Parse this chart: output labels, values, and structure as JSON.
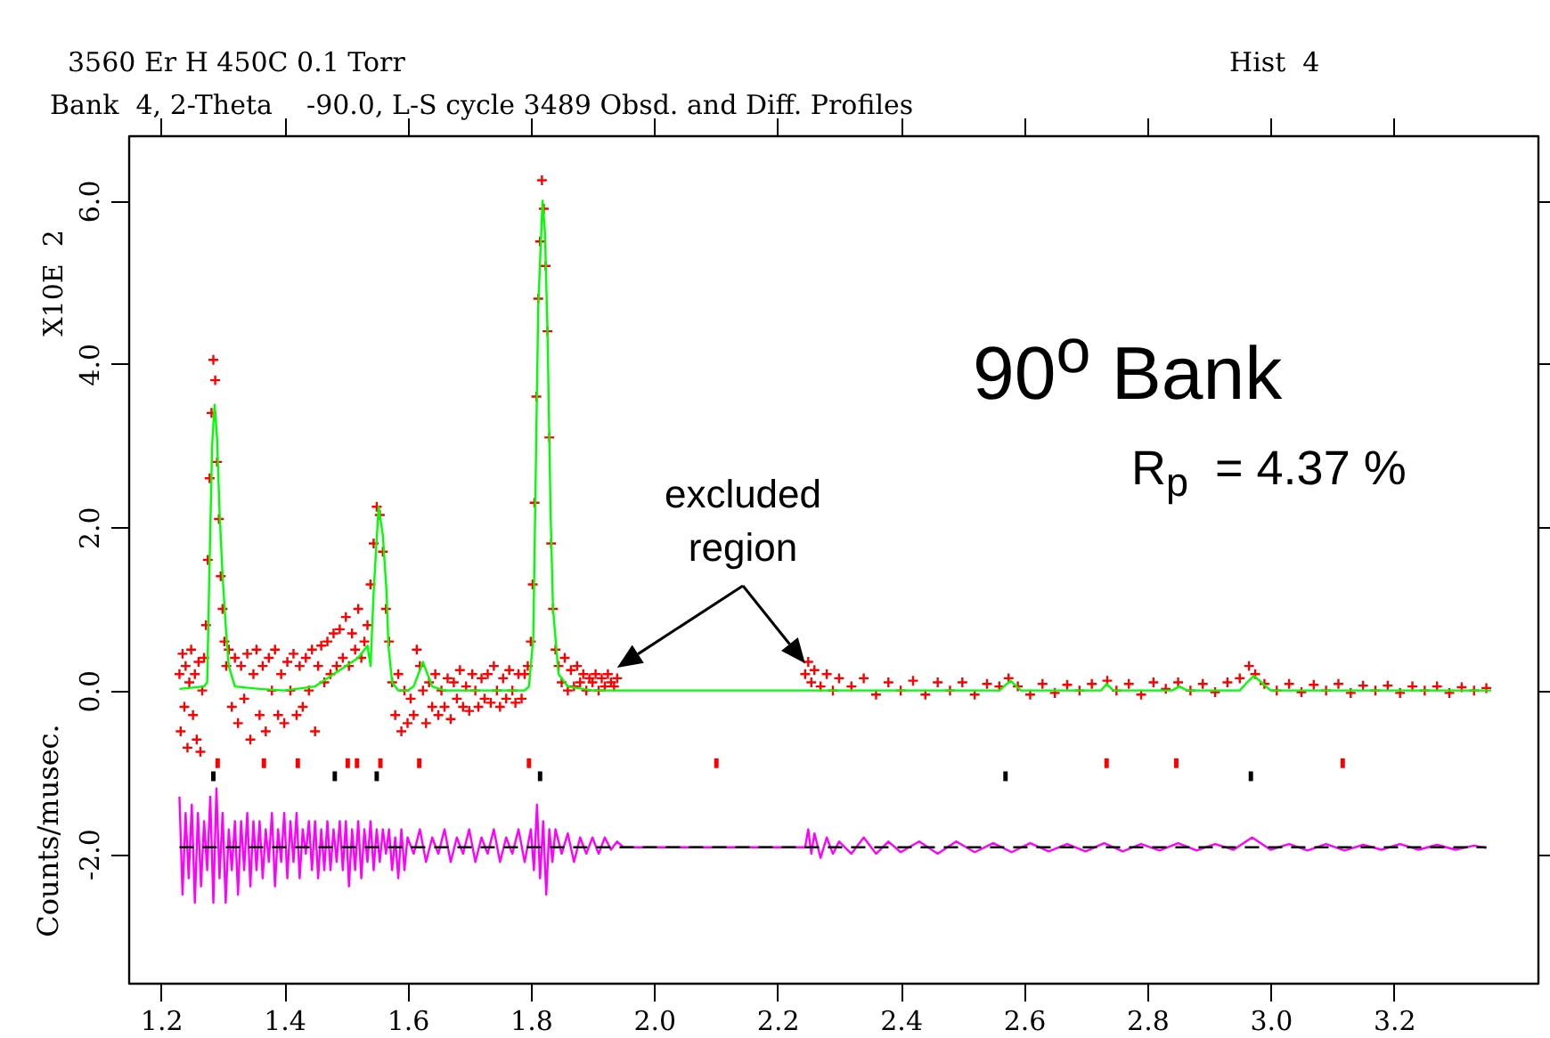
{
  "chart_data": {
    "type": "scatter",
    "title": "3560 Er H 450C 0.1 Torr",
    "subtitle": "Bank  4, 2-Theta    -90.0, L-S cycle 3489 Obsd. and Diff. Profiles",
    "ylabel": "Counts/musec.",
    "annotations": [
      "Hist  4",
      "X10E  2",
      "90$^{o}$ Bank",
      "R$_{p}$  = 4.37 %",
      "excluded region"
    ],
    "xlim": [
      1.147,
      3.433
    ],
    "xticks": [
      {
        "value": 1.2,
        "label": "1.2"
      },
      {
        "value": 1.4,
        "label": "1.4"
      },
      {
        "value": 1.6,
        "label": "1.6"
      },
      {
        "value": 1.8,
        "label": "1.8"
      },
      {
        "value": 2.0,
        "label": "2.0"
      },
      {
        "value": 2.2,
        "label": "2.2"
      },
      {
        "value": 2.4,
        "label": "2.4"
      },
      {
        "value": 2.6,
        "label": "2.6"
      },
      {
        "value": 2.8,
        "label": "2.8"
      },
      {
        "value": 3.0,
        "label": "3.0"
      },
      {
        "value": 3.2,
        "label": "3.2"
      }
    ],
    "ylim": [
      -3.58,
      6.8
    ],
    "yticks": [
      {
        "value": -2,
        "label": "-2.0"
      },
      {
        "value": 0,
        "label": "0.0"
      },
      {
        "value": 2,
        "label": "2.0"
      },
      {
        "value": 4,
        "label": "4.0"
      },
      {
        "value": 6,
        "label": "6.0"
      }
    ],
    "grid": false,
    "series": [
      {
        "marker": "cross",
        "color": "#ff0000",
        "x": [
          1.23,
          1.232,
          1.235,
          1.238,
          1.24,
          1.243,
          1.246,
          1.249,
          1.252,
          1.255,
          1.258,
          1.261,
          1.264,
          1.267,
          1.27,
          1.273,
          1.276,
          1.279,
          1.282,
          1.285,
          1.288,
          1.291,
          1.294,
          1.297,
          1.3,
          1.303,
          1.306,
          1.31,
          1.315,
          1.32,
          1.325,
          1.33,
          1.335,
          1.34,
          1.345,
          1.35,
          1.355,
          1.36,
          1.365,
          1.37,
          1.375,
          1.38,
          1.385,
          1.39,
          1.395,
          1.4,
          1.405,
          1.41,
          1.415,
          1.42,
          1.425,
          1.43,
          1.435,
          1.44,
          1.445,
          1.45,
          1.455,
          1.46,
          1.465,
          1.47,
          1.475,
          1.48,
          1.485,
          1.49,
          1.495,
          1.5,
          1.505,
          1.51,
          1.515,
          1.52,
          1.525,
          1.53,
          1.535,
          1.54,
          1.545,
          1.55,
          1.555,
          1.56,
          1.565,
          1.57,
          1.575,
          1.58,
          1.585,
          1.59,
          1.595,
          1.6,
          1.605,
          1.61,
          1.615,
          1.62,
          1.625,
          1.63,
          1.635,
          1.64,
          1.645,
          1.65,
          1.655,
          1.66,
          1.665,
          1.67,
          1.675,
          1.68,
          1.685,
          1.69,
          1.695,
          1.7,
          1.705,
          1.71,
          1.715,
          1.72,
          1.725,
          1.73,
          1.735,
          1.74,
          1.745,
          1.75,
          1.755,
          1.76,
          1.765,
          1.77,
          1.775,
          1.78,
          1.785,
          1.79,
          1.795,
          1.8,
          1.803,
          1.806,
          1.809,
          1.812,
          1.815,
          1.818,
          1.821,
          1.824,
          1.827,
          1.83,
          1.833,
          1.836,
          1.84,
          1.845,
          1.85,
          1.855,
          1.86,
          1.865,
          1.87,
          1.875,
          1.88,
          1.885,
          1.89,
          1.895,
          1.9,
          1.905,
          1.91,
          1.915,
          1.92,
          1.925,
          1.93,
          1.935,
          1.94,
          2.245,
          2.25,
          2.255,
          2.26,
          2.27,
          2.28,
          2.29,
          2.3,
          2.32,
          2.34,
          2.36,
          2.38,
          2.4,
          2.42,
          2.44,
          2.46,
          2.48,
          2.5,
          2.52,
          2.54,
          2.56,
          2.575,
          2.59,
          2.61,
          2.63,
          2.65,
          2.67,
          2.69,
          2.71,
          2.735,
          2.75,
          2.77,
          2.79,
          2.81,
          2.83,
          2.85,
          2.87,
          2.89,
          2.91,
          2.93,
          2.95,
          2.965,
          2.975,
          2.99,
          3.01,
          3.03,
          3.05,
          3.07,
          3.09,
          3.11,
          3.13,
          3.15,
          3.17,
          3.19,
          3.21,
          3.23,
          3.25,
          3.27,
          3.29,
          3.31,
          3.33,
          3.35
        ],
        "values": [
          0.2,
          -0.5,
          0.45,
          -0.2,
          0.3,
          -0.7,
          0.1,
          0.5,
          -0.3,
          0.2,
          -0.6,
          0.35,
          -0.75,
          0.0,
          0.4,
          0.8,
          1.6,
          2.6,
          3.4,
          4.05,
          3.8,
          2.8,
          2.1,
          1.4,
          1.0,
          0.6,
          0.3,
          0.5,
          -0.2,
          0.4,
          -0.4,
          0.3,
          -0.1,
          0.45,
          -0.6,
          0.2,
          0.5,
          -0.3,
          0.3,
          -0.5,
          0.4,
          0.0,
          0.5,
          -0.3,
          0.2,
          -0.4,
          0.35,
          0.0,
          0.45,
          -0.3,
          0.3,
          -0.2,
          0.4,
          0.0,
          0.5,
          -0.5,
          0.3,
          0.55,
          0.1,
          0.6,
          0.2,
          0.7,
          0.3,
          0.75,
          0.4,
          0.9,
          0.3,
          0.7,
          0.5,
          1.0,
          0.4,
          0.6,
          0.8,
          1.3,
          1.8,
          2.25,
          2.15,
          1.7,
          1.0,
          0.6,
          0.1,
          -0.3,
          0.2,
          -0.5,
          0.0,
          -0.4,
          -0.1,
          -0.3,
          0.5,
          0.3,
          0.0,
          -0.4,
          0.1,
          -0.2,
          0.2,
          -0.3,
          0.0,
          -0.2,
          0.15,
          -0.35,
          0.1,
          -0.1,
          0.25,
          -0.2,
          0.05,
          -0.25,
          0.2,
          0.0,
          -0.2,
          0.15,
          -0.1,
          0.2,
          -0.15,
          0.3,
          0.0,
          -0.2,
          0.15,
          -0.1,
          0.25,
          0.0,
          -0.15,
          0.2,
          -0.1,
          0.2,
          0.3,
          0.6,
          1.3,
          2.3,
          3.6,
          4.8,
          5.5,
          6.25,
          5.9,
          5.2,
          4.4,
          3.1,
          1.8,
          1.0,
          0.5,
          0.3,
          0.1,
          0.4,
          0.0,
          0.25,
          0.05,
          0.3,
          0.1,
          0.2,
          0.0,
          0.15,
          0.1,
          0.2,
          0.0,
          0.15,
          0.05,
          0.2,
          0.1,
          0.05,
          0.15,
          0.2,
          0.35,
          0.1,
          0.25,
          0.05,
          0.2,
          0.0,
          0.15,
          0.05,
          0.15,
          -0.05,
          0.1,
          0.0,
          0.12,
          -0.05,
          0.1,
          0.0,
          0.1,
          -0.05,
          0.08,
          0.05,
          0.15,
          0.05,
          -0.05,
          0.08,
          -0.03,
          0.07,
          0.0,
          0.08,
          0.12,
          0.0,
          0.08,
          -0.05,
          0.1,
          0.02,
          0.1,
          0.0,
          0.08,
          -0.02,
          0.1,
          0.15,
          0.3,
          0.2,
          0.08,
          0.0,
          0.08,
          -0.02,
          0.07,
          0.0,
          0.08,
          -0.03,
          0.06,
          0.0,
          0.06,
          -0.03,
          0.05,
          0.0,
          0.05,
          -0.03,
          0.04,
          0.0,
          0.03
        ]
      },
      {
        "type": "line",
        "color": "#00ff00",
        "x": [
          1.23,
          1.27,
          1.275,
          1.279,
          1.283,
          1.287,
          1.291,
          1.295,
          1.3,
          1.305,
          1.31,
          1.32,
          1.36,
          1.4,
          1.45,
          1.48,
          1.5,
          1.52,
          1.535,
          1.54,
          1.545,
          1.553,
          1.56,
          1.566,
          1.569,
          1.575,
          1.585,
          1.6,
          1.61,
          1.625,
          1.64,
          1.66,
          1.7,
          1.75,
          1.79,
          1.797,
          1.804,
          1.812,
          1.819,
          1.823,
          1.827,
          1.832,
          1.836,
          1.845,
          1.86,
          1.9,
          1.95,
          2.1,
          2.245,
          2.4,
          2.56,
          2.578,
          2.595,
          2.7,
          2.725,
          2.734,
          2.745,
          2.84,
          2.852,
          2.865,
          2.95,
          2.962,
          2.973,
          2.985,
          3.0,
          3.2,
          3.358
        ],
        "values": [
          0.02,
          0.05,
          0.1,
          1.6,
          3.0,
          3.5,
          3.1,
          2.2,
          1.4,
          0.8,
          0.3,
          0.05,
          0.02,
          0.0,
          0.05,
          0.2,
          0.3,
          0.4,
          0.55,
          0.3,
          1.2,
          2.25,
          1.9,
          1.2,
          0.55,
          0.1,
          0.0,
          0.0,
          0.05,
          0.35,
          0.05,
          0.0,
          0.0,
          0.0,
          0.0,
          0.05,
          0.65,
          4.7,
          6.0,
          5.6,
          4.4,
          2.2,
          1.0,
          0.2,
          0.05,
          0.0,
          0.0,
          0.0,
          0.0,
          0.0,
          0.0,
          0.12,
          0.0,
          0.0,
          0.0,
          0.08,
          0.0,
          0.0,
          0.05,
          0.0,
          0.0,
          0.1,
          0.18,
          0.1,
          0.0,
          0.0,
          0.0
        ]
      },
      {
        "type": "line",
        "color": "#ff00ff",
        "x": [
          1.23,
          1.235,
          1.24,
          1.245,
          1.25,
          1.255,
          1.26,
          1.265,
          1.27,
          1.275,
          1.28,
          1.285,
          1.29,
          1.295,
          1.3,
          1.305,
          1.31,
          1.315,
          1.32,
          1.325,
          1.33,
          1.335,
          1.34,
          1.345,
          1.35,
          1.355,
          1.36,
          1.365,
          1.37,
          1.375,
          1.38,
          1.385,
          1.39,
          1.395,
          1.4,
          1.405,
          1.41,
          1.415,
          1.42,
          1.425,
          1.43,
          1.435,
          1.44,
          1.445,
          1.45,
          1.455,
          1.46,
          1.465,
          1.47,
          1.475,
          1.48,
          1.485,
          1.49,
          1.495,
          1.5,
          1.505,
          1.51,
          1.515,
          1.52,
          1.525,
          1.53,
          1.535,
          1.54,
          1.545,
          1.55,
          1.555,
          1.56,
          1.565,
          1.57,
          1.575,
          1.58,
          1.585,
          1.59,
          1.595,
          1.6,
          1.61,
          1.62,
          1.63,
          1.64,
          1.65,
          1.66,
          1.67,
          1.68,
          1.69,
          1.7,
          1.71,
          1.72,
          1.73,
          1.74,
          1.75,
          1.76,
          1.77,
          1.78,
          1.79,
          1.8,
          1.805,
          1.81,
          1.815,
          1.82,
          1.825,
          1.83,
          1.835,
          1.84,
          1.85,
          1.86,
          1.87,
          1.88,
          1.89,
          1.9,
          1.91,
          1.92,
          1.93,
          1.94,
          1.95,
          2.245,
          2.25,
          2.255,
          2.26,
          2.27,
          2.28,
          2.29,
          2.3,
          2.32,
          2.34,
          2.36,
          2.38,
          2.4,
          2.43,
          2.46,
          2.49,
          2.52,
          2.55,
          2.58,
          2.61,
          2.64,
          2.67,
          2.7,
          2.73,
          2.76,
          2.79,
          2.82,
          2.85,
          2.88,
          2.91,
          2.94,
          2.97,
          3.0,
          3.03,
          3.06,
          3.09,
          3.12,
          3.15,
          3.18,
          3.21,
          3.24,
          3.27,
          3.3,
          3.33,
          3.35
        ],
        "values": [
          -1.3,
          -2.5,
          -1.5,
          -2.3,
          -1.4,
          -2.6,
          -1.5,
          -2.4,
          -1.6,
          -2.2,
          -1.3,
          -2.6,
          -1.2,
          -2.3,
          -1.5,
          -2.6,
          -1.7,
          -2.2,
          -1.6,
          -2.5,
          -1.6,
          -2.2,
          -1.5,
          -2.4,
          -1.6,
          -2.2,
          -1.6,
          -2.3,
          -1.7,
          -2.1,
          -1.5,
          -2.4,
          -1.7,
          -2.1,
          -1.5,
          -2.3,
          -1.6,
          -2.1,
          -1.5,
          -2.3,
          -1.7,
          -2.0,
          -1.6,
          -2.2,
          -1.6,
          -2.3,
          -1.7,
          -2.2,
          -1.6,
          -2.2,
          -1.7,
          -2.1,
          -1.6,
          -2.2,
          -1.6,
          -2.4,
          -1.7,
          -2.2,
          -1.6,
          -2.3,
          -1.7,
          -2.1,
          -1.6,
          -2.2,
          -1.7,
          -2.1,
          -1.7,
          -2.0,
          -1.7,
          -2.2,
          -1.8,
          -2.3,
          -1.7,
          -2.2,
          -1.8,
          -2.0,
          -1.7,
          -2.1,
          -1.8,
          -2.0,
          -1.7,
          -2.1,
          -1.8,
          -2.0,
          -1.7,
          -2.1,
          -1.8,
          -2.0,
          -1.7,
          -2.1,
          -1.8,
          -2.0,
          -1.7,
          -2.1,
          -1.7,
          -2.2,
          -1.4,
          -2.3,
          -1.6,
          -2.5,
          -1.7,
          -2.1,
          -1.7,
          -2.0,
          -1.75,
          -2.1,
          -1.8,
          -2.0,
          -1.8,
          -2.0,
          -1.8,
          -1.95,
          -1.85,
          -1.92,
          -1.92,
          -1.7,
          -2.0,
          -1.75,
          -2.05,
          -1.8,
          -2.0,
          -1.85,
          -2.0,
          -1.8,
          -2.0,
          -1.85,
          -1.98,
          -1.85,
          -2.0,
          -1.85,
          -1.98,
          -1.87,
          -1.98,
          -1.87,
          -1.97,
          -1.88,
          -1.97,
          -1.87,
          -1.97,
          -1.88,
          -1.96,
          -1.87,
          -1.96,
          -1.88,
          -1.95,
          -1.8,
          -1.95,
          -1.88,
          -1.96,
          -1.88,
          -1.96,
          -1.89,
          -1.95,
          -1.88,
          -1.95,
          -1.89,
          -1.95,
          -1.9,
          -1.93
        ]
      },
      {
        "type": "line",
        "color": "#000000",
        "line_style": "dashed",
        "x": [
          1.23,
          3.35
        ],
        "values": [
          -1.92,
          -1.92
        ]
      },
      {
        "type": "scatter",
        "color": "#ff0000",
        "x": [
          1.292,
          1.367,
          1.422,
          1.503,
          1.518,
          1.556,
          1.619,
          1.797,
          2.101,
          2.734,
          2.847,
          3.117
        ],
        "values": [
          -0.89,
          -0.89,
          -0.89,
          -0.89,
          -0.89,
          -0.89,
          -0.89,
          -0.89,
          -0.89,
          -0.89,
          -0.89,
          -0.89
        ]
      },
      {
        "type": "scatter",
        "color": "#000000",
        "x": [
          1.285,
          1.482,
          1.55,
          1.815,
          2.57,
          2.968
        ],
        "values": [
          -1.05,
          -1.05,
          -1.05,
          -1.05,
          -1.05,
          -1.05
        ]
      }
    ]
  }
}
